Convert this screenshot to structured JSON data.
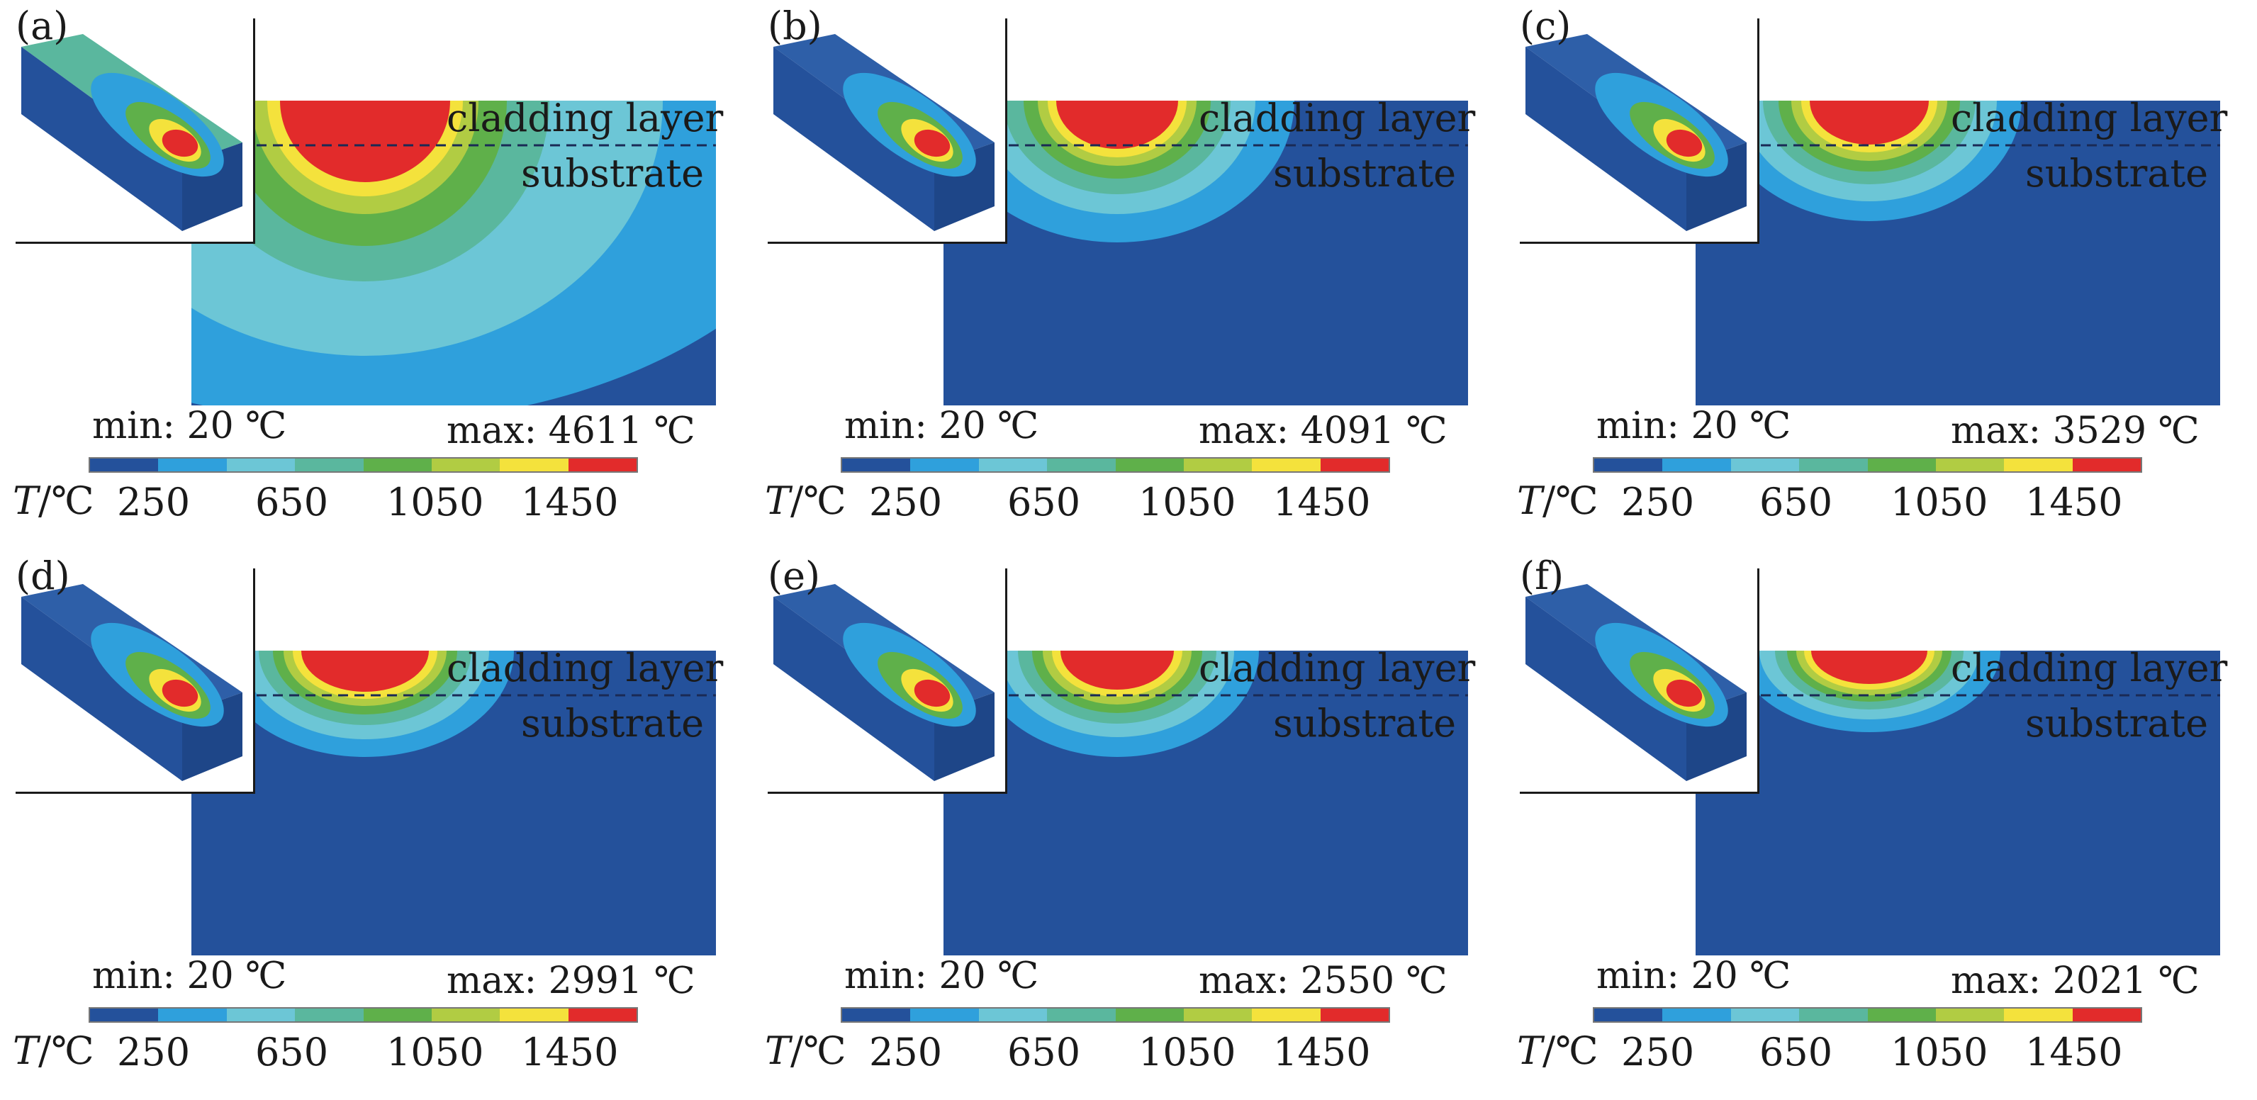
{
  "colorbar": {
    "colors": [
      "#24519b",
      "#2fa0dc",
      "#6cc6d6",
      "#5ab79e",
      "#5fb04a",
      "#b1cc43",
      "#f4e23c",
      "#e22b2b"
    ],
    "axis_label": "T",
    "unit": "/℃",
    "ticks": [
      "250",
      "650",
      "1050",
      "1450"
    ]
  },
  "labels": {
    "cladding": "cladding layer",
    "substrate": "substrate"
  },
  "panels": [
    {
      "label": "(a)",
      "min": "min: 20 ℃",
      "max": "max: 4611 ℃"
    },
    {
      "label": "(b)",
      "min": "min: 20 ℃",
      "max": "max: 4091 ℃"
    },
    {
      "label": "(c)",
      "min": "min: 20 ℃",
      "max": "max: 3529 ℃"
    },
    {
      "label": "(d)",
      "min": "min: 20 ℃",
      "max": "max: 2991 ℃"
    },
    {
      "label": "(e)",
      "min": "min: 20 ℃",
      "max": "max: 2550 ℃"
    },
    {
      "label": "(f)",
      "min": "min: 20 ℃",
      "max": "max: 2021 ℃"
    }
  ]
}
